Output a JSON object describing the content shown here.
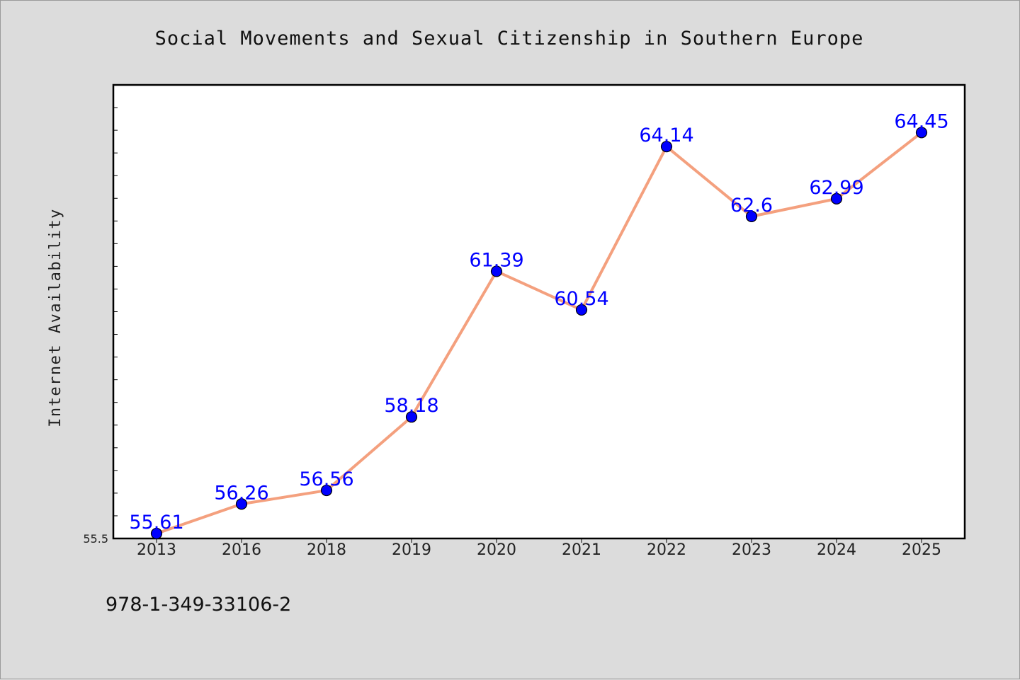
{
  "chart_data": {
    "type": "line",
    "title": "Social Movements and Sexual Citizenship in Southern Europe",
    "xlabel": "",
    "ylabel": "Internet Availability",
    "categories": [
      "2013",
      "2016",
      "2018",
      "2019",
      "2020",
      "2021",
      "2022",
      "2023",
      "2024",
      "2025"
    ],
    "series": [
      {
        "values": [
          55.61,
          56.26,
          56.56,
          58.18,
          61.39,
          60.54,
          64.14,
          62.6,
          62.99,
          64.45
        ]
      }
    ],
    "data_labels": [
      "55.61",
      "56.26",
      "56.56",
      "58.18",
      "61.39",
      "60.54",
      "64.14",
      "62.6",
      "62.99",
      "64.45"
    ],
    "ylim": [
      55.5,
      65.5
    ],
    "y_tick_labels": [
      "55.5"
    ],
    "grid": false,
    "colors": {
      "line": "#f4a07e",
      "marker": "#0000ff",
      "data_label": "#0000ff",
      "plot_bg": "#ffffff",
      "page_bg": "#dcdcdc"
    }
  },
  "footer": {
    "text": "978-1-349-33106-2"
  }
}
